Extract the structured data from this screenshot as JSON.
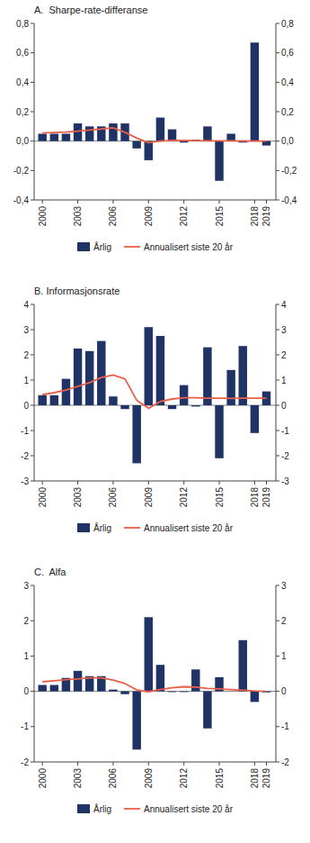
{
  "chart_data": [
    {
      "type": "bar",
      "title": "A.  Sharpe-rate-differanse",
      "x": [
        2000,
        2001,
        2002,
        2003,
        2004,
        2005,
        2006,
        2007,
        2008,
        2009,
        2010,
        2011,
        2012,
        2013,
        2014,
        2015,
        2016,
        2017,
        2018,
        2019
      ],
      "series": [
        {
          "name": "Årlig",
          "type": "bar",
          "color": "#1f3366",
          "values": [
            0.05,
            0.05,
            0.05,
            0.12,
            0.1,
            0.1,
            0.12,
            0.12,
            -0.05,
            -0.13,
            0.16,
            0.08,
            -0.01,
            0.01,
            0.1,
            -0.27,
            0.05,
            -0.01,
            0.67,
            -0.03
          ]
        },
        {
          "name": "Annualisert siste 20 år",
          "type": "line",
          "color": "#e8604a",
          "values": [
            0.055,
            0.058,
            0.062,
            0.068,
            0.075,
            0.082,
            0.09,
            0.06,
            0.02,
            -0.01,
            0.0,
            0.005,
            0.005,
            0.003,
            0.002,
            0.002,
            0.002,
            0.001,
            0.0,
            0.0
          ]
        }
      ],
      "xlim": [
        1999.3,
        2019.8
      ],
      "xticks": [
        2000,
        2003,
        2006,
        2009,
        2012,
        2015,
        2018,
        2019
      ],
      "ylim": [
        -0.4,
        0.8
      ],
      "yticks": [
        {
          "value": -0.4,
          "label": "-0,4"
        },
        {
          "value": -0.2,
          "label": "-0,2"
        },
        {
          "value": 0.0,
          "label": "0,0"
        },
        {
          "value": 0.2,
          "label": "0,2"
        },
        {
          "value": 0.4,
          "label": "0,4"
        },
        {
          "value": 0.6,
          "label": "0,6"
        },
        {
          "value": 0.8,
          "label": "0,8"
        }
      ],
      "y2lim": [
        -0.4,
        0.8
      ],
      "y2ticks": [
        {
          "value": -0.4,
          "label": "-0,4"
        },
        {
          "value": -0.2,
          "label": "-0,2"
        },
        {
          "value": 0.0,
          "label": "0,0"
        },
        {
          "value": 0.2,
          "label": "0,2"
        },
        {
          "value": 0.4,
          "label": "0,4"
        },
        {
          "value": 0.6,
          "label": "0,6"
        },
        {
          "value": 0.8,
          "label": "0,8"
        }
      ],
      "grid": false,
      "legend": "bottom"
    },
    {
      "type": "bar",
      "title": "B. Informasjonsrate",
      "x": [
        2000,
        2001,
        2002,
        2003,
        2004,
        2005,
        2006,
        2007,
        2008,
        2009,
        2010,
        2011,
        2012,
        2013,
        2014,
        2015,
        2016,
        2017,
        2018,
        2019
      ],
      "series": [
        {
          "name": "Årlig",
          "type": "bar",
          "color": "#1f3366",
          "values": [
            0.4,
            0.4,
            1.05,
            2.25,
            2.15,
            2.55,
            0.35,
            -0.15,
            -2.3,
            3.1,
            2.75,
            -0.15,
            0.8,
            -0.05,
            2.3,
            -2.1,
            1.4,
            2.35,
            -1.1,
            0.55
          ]
        },
        {
          "name": "Annualisert siste 20 år",
          "type": "line",
          "color": "#e8604a",
          "values": [
            0.42,
            0.5,
            0.6,
            0.75,
            0.9,
            1.1,
            1.2,
            1.05,
            0.2,
            -0.12,
            0.15,
            0.25,
            0.3,
            0.3,
            0.28,
            0.28,
            0.27,
            0.28,
            0.28,
            0.28
          ]
        }
      ],
      "xlim": [
        1999.3,
        2019.8
      ],
      "xticks": [
        2000,
        2003,
        2006,
        2009,
        2012,
        2015,
        2018,
        2019
      ],
      "ylim": [
        -3,
        4
      ],
      "yticks": [
        -3,
        -2,
        -1,
        0,
        1,
        2,
        3,
        4
      ],
      "y2lim": [
        -3,
        4
      ],
      "y2ticks": [
        -3,
        -2,
        -1,
        0,
        1,
        2,
        3,
        4
      ],
      "grid": false,
      "legend": "bottom"
    },
    {
      "type": "bar",
      "title": "C.  Alfa",
      "x": [
        2000,
        2001,
        2002,
        2003,
        2004,
        2005,
        2006,
        2007,
        2008,
        2009,
        2010,
        2011,
        2012,
        2013,
        2014,
        2015,
        2016,
        2017,
        2018,
        2019
      ],
      "series": [
        {
          "name": "Årlig",
          "type": "bar",
          "color": "#1f3366",
          "values": [
            0.18,
            0.18,
            0.38,
            0.58,
            0.43,
            0.43,
            0.05,
            -0.08,
            -1.65,
            2.1,
            0.75,
            -0.02,
            -0.02,
            0.62,
            -1.05,
            0.4,
            0.0,
            1.45,
            -0.3,
            -0.03
          ]
        },
        {
          "name": "Annualisert siste 20 år",
          "type": "line",
          "color": "#e8604a",
          "values": [
            0.27,
            0.3,
            0.33,
            0.35,
            0.38,
            0.38,
            0.32,
            0.22,
            0.04,
            -0.01,
            0.05,
            0.1,
            0.13,
            0.12,
            0.08,
            0.07,
            0.05,
            0.03,
            0.01,
            0.0
          ]
        }
      ],
      "xlim": [
        1999.3,
        2019.8
      ],
      "xticks": [
        2000,
        2003,
        2006,
        2009,
        2012,
        2015,
        2018,
        2019
      ],
      "ylim": [
        -2,
        3
      ],
      "yticks": [
        -2,
        -1,
        0,
        1,
        2,
        3
      ],
      "y2lim": [
        -2,
        3
      ],
      "y2ticks": [
        -2,
        -1,
        0,
        1,
        2,
        3
      ],
      "grid": false,
      "legend": "bottom"
    }
  ]
}
